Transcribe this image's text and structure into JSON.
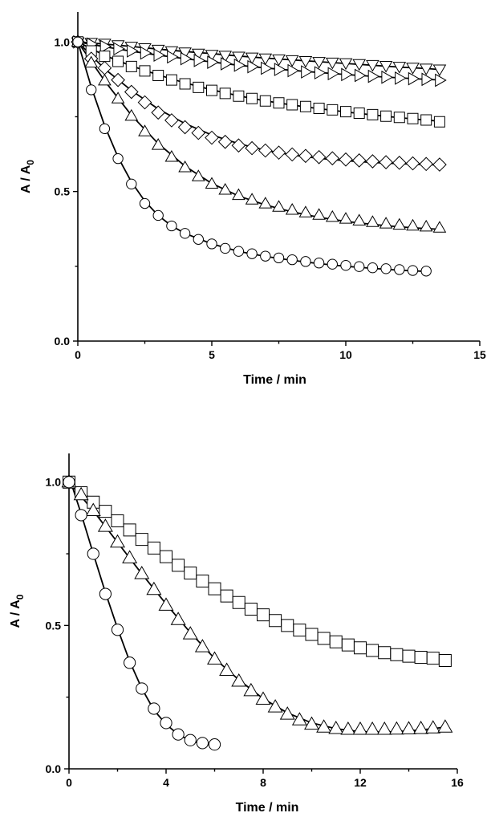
{
  "chart_data": [
    {
      "type": "scatter",
      "xlabel": "Time / min",
      "ylabel": "A / A",
      "ylabel_sub": "0",
      "xlim": [
        0,
        15
      ],
      "ylim": [
        0,
        1.1
      ],
      "xticks": [
        0,
        5,
        10,
        15
      ],
      "xtick_labels": [
        "0",
        "5",
        "10",
        "15"
      ],
      "yticks": [
        0.0,
        0.5,
        1.0
      ],
      "ytick_labels": [
        "0.0",
        "0.5",
        "1.0"
      ],
      "grid": false,
      "series": [
        {
          "marker": "down-triangle",
          "x": [
            0,
            0.5,
            1,
            1.5,
            2,
            2.5,
            3,
            3.5,
            4,
            4.5,
            5,
            5.5,
            6,
            6.5,
            7,
            7.5,
            8,
            8.5,
            9,
            9.5,
            10,
            10.5,
            11,
            11.5,
            12,
            12.5,
            13,
            13.5
          ],
          "y": [
            1.0,
            0.998,
            0.995,
            0.99,
            0.985,
            0.98,
            0.975,
            0.97,
            0.966,
            0.962,
            0.958,
            0.955,
            0.952,
            0.949,
            0.946,
            0.943,
            0.94,
            0.937,
            0.934,
            0.932,
            0.93,
            0.927,
            0.924,
            0.921,
            0.918,
            0.915,
            0.912,
            0.909
          ],
          "fit_x": [
            0,
            1,
            2,
            3,
            4,
            5,
            6,
            7,
            8,
            9,
            10,
            11,
            12,
            13,
            13.5
          ],
          "fit_y": [
            1.0,
            0.993,
            0.985,
            0.976,
            0.968,
            0.961,
            0.953,
            0.946,
            0.94,
            0.934,
            0.928,
            0.922,
            0.916,
            0.911,
            0.908
          ]
        },
        {
          "marker": "right-triangle",
          "x": [
            0,
            0.5,
            1,
            1.5,
            2,
            2.5,
            3,
            3.5,
            4,
            4.5,
            5,
            5.5,
            6,
            6.5,
            7,
            7.5,
            8,
            8.5,
            9,
            9.5,
            10,
            10.5,
            11,
            11.5,
            12,
            12.5,
            13,
            13.5
          ],
          "y": [
            1.0,
            0.993,
            0.985,
            0.977,
            0.97,
            0.963,
            0.956,
            0.95,
            0.944,
            0.938,
            0.932,
            0.927,
            0.922,
            0.917,
            0.912,
            0.908,
            0.904,
            0.9,
            0.897,
            0.894,
            0.891,
            0.888,
            0.885,
            0.882,
            0.879,
            0.877,
            0.875,
            0.872
          ],
          "fit_x": [
            0,
            1,
            2,
            3,
            4,
            5,
            6,
            7,
            8,
            9,
            10,
            11,
            12,
            13,
            13.5
          ],
          "fit_y": [
            1.0,
            0.984,
            0.969,
            0.956,
            0.944,
            0.933,
            0.922,
            0.913,
            0.905,
            0.898,
            0.891,
            0.885,
            0.88,
            0.875,
            0.873
          ]
        },
        {
          "marker": "square",
          "x": [
            0,
            0.5,
            1,
            1.5,
            2,
            2.5,
            3,
            3.5,
            4,
            4.5,
            5,
            5.5,
            6,
            6.5,
            7,
            7.5,
            8,
            8.5,
            9,
            9.5,
            10,
            10.5,
            11,
            11.5,
            12,
            12.5,
            13,
            13.5
          ],
          "y": [
            1.0,
            0.97,
            0.952,
            0.935,
            0.918,
            0.903,
            0.888,
            0.873,
            0.86,
            0.848,
            0.838,
            0.828,
            0.819,
            0.811,
            0.803,
            0.796,
            0.79,
            0.784,
            0.778,
            0.773,
            0.767,
            0.762,
            0.757,
            0.752,
            0.748,
            0.744,
            0.739,
            0.733
          ],
          "fit_x": [
            0,
            1,
            2,
            3,
            4,
            5,
            6,
            7,
            8,
            9,
            10,
            11,
            12,
            13,
            13.5
          ],
          "fit_y": [
            1.0,
            0.955,
            0.92,
            0.89,
            0.863,
            0.84,
            0.82,
            0.803,
            0.789,
            0.777,
            0.766,
            0.756,
            0.747,
            0.739,
            0.735
          ]
        },
        {
          "marker": "diamond",
          "x": [
            0,
            0.5,
            1,
            1.5,
            2,
            2.5,
            3,
            3.5,
            4,
            4.5,
            5,
            5.5,
            6,
            6.5,
            7,
            7.5,
            8,
            8.5,
            9,
            9.5,
            10,
            10.5,
            11,
            11.5,
            12,
            12.5,
            13,
            13.5
          ],
          "y": [
            1.0,
            0.944,
            0.913,
            0.873,
            0.833,
            0.798,
            0.764,
            0.738,
            0.715,
            0.696,
            0.68,
            0.666,
            0.654,
            0.645,
            0.637,
            0.63,
            0.624,
            0.619,
            0.615,
            0.611,
            0.607,
            0.604,
            0.601,
            0.598,
            0.596,
            0.594,
            0.592,
            0.59
          ],
          "fit_x": [
            0,
            1,
            2,
            3,
            4,
            5,
            6,
            7,
            8,
            9,
            10,
            11,
            12,
            13,
            13.5
          ],
          "fit_y": [
            1.0,
            0.91,
            0.838,
            0.776,
            0.727,
            0.689,
            0.66,
            0.638,
            0.622,
            0.611,
            0.603,
            0.597,
            0.593,
            0.59,
            0.589
          ]
        },
        {
          "marker": "triangle",
          "x": [
            0,
            0.5,
            1,
            1.5,
            2,
            2.5,
            3,
            3.5,
            4,
            4.5,
            5,
            5.5,
            6,
            6.5,
            7,
            7.5,
            8,
            8.5,
            9,
            9.5,
            10,
            10.5,
            11,
            11.5,
            12,
            12.5,
            13,
            13.5
          ],
          "y": [
            1.0,
            0.93,
            0.87,
            0.81,
            0.752,
            0.7,
            0.655,
            0.615,
            0.58,
            0.55,
            0.525,
            0.505,
            0.487,
            0.472,
            0.459,
            0.448,
            0.438,
            0.429,
            0.421,
            0.414,
            0.408,
            0.402,
            0.397,
            0.392,
            0.388,
            0.385,
            0.382,
            0.378
          ],
          "fit_x": [
            0,
            1,
            2,
            3,
            4,
            5,
            6,
            7,
            8,
            9,
            10,
            11,
            12,
            13,
            13.5
          ],
          "fit_y": [
            1.0,
            0.87,
            0.755,
            0.66,
            0.585,
            0.527,
            0.485,
            0.455,
            0.432,
            0.414,
            0.4,
            0.39,
            0.382,
            0.376,
            0.374
          ]
        },
        {
          "marker": "circle",
          "x": [
            0,
            0.5,
            1,
            1.5,
            2,
            2.5,
            3,
            3.5,
            4,
            4.5,
            5,
            5.5,
            6,
            6.5,
            7,
            7.5,
            8,
            8.5,
            9,
            9.5,
            10,
            10.5,
            11,
            11.5,
            12,
            12.5,
            13
          ],
          "y": [
            1.0,
            0.84,
            0.71,
            0.61,
            0.525,
            0.46,
            0.42,
            0.385,
            0.36,
            0.34,
            0.325,
            0.31,
            0.3,
            0.292,
            0.284,
            0.278,
            0.272,
            0.266,
            0.261,
            0.257,
            0.253,
            0.249,
            0.245,
            0.242,
            0.239,
            0.236,
            0.234
          ],
          "fit_x": [
            0,
            0.5,
            1,
            1.5,
            2,
            2.5,
            3,
            3.5,
            4,
            5,
            6,
            7,
            8,
            9,
            10,
            11,
            12,
            13
          ],
          "fit_y": [
            1.0,
            0.85,
            0.72,
            0.615,
            0.532,
            0.468,
            0.42,
            0.385,
            0.36,
            0.325,
            0.3,
            0.283,
            0.27,
            0.259,
            0.25,
            0.243,
            0.237,
            0.233
          ]
        }
      ]
    },
    {
      "type": "scatter",
      "xlabel": "Time / min",
      "ylabel": "A / A",
      "ylabel_sub": "0",
      "xlim": [
        0,
        16
      ],
      "ylim": [
        0,
        1.1
      ],
      "xticks": [
        0,
        4,
        8,
        12,
        16
      ],
      "xtick_labels": [
        "0",
        "4",
        "8",
        "12",
        "16"
      ],
      "yticks": [
        0.0,
        0.5,
        1.0
      ],
      "ytick_labels": [
        "0.0",
        "0.5",
        "1.0"
      ],
      "grid": false,
      "series": [
        {
          "marker": "square",
          "x": [
            0,
            0.5,
            1,
            1.5,
            2,
            2.5,
            3,
            3.5,
            4,
            4.5,
            5,
            5.5,
            6,
            6.5,
            7,
            7.5,
            8,
            8.5,
            9,
            9.5,
            10,
            10.5,
            11,
            11.5,
            12,
            12.5,
            13,
            13.5,
            14,
            14.5,
            15,
            15.5
          ],
          "y": [
            1.0,
            0.963,
            0.93,
            0.898,
            0.865,
            0.833,
            0.8,
            0.77,
            0.74,
            0.71,
            0.683,
            0.655,
            0.628,
            0.603,
            0.58,
            0.557,
            0.537,
            0.517,
            0.5,
            0.484,
            0.469,
            0.455,
            0.443,
            0.432,
            0.422,
            0.413,
            0.405,
            0.398,
            0.393,
            0.389,
            0.386,
            0.378
          ],
          "fit_x": [
            0,
            1,
            2,
            3,
            4,
            5,
            6,
            7,
            8,
            9,
            10,
            11,
            12,
            13,
            14,
            15,
            15.5
          ],
          "fit_y": [
            1.0,
            0.935,
            0.87,
            0.805,
            0.742,
            0.682,
            0.627,
            0.577,
            0.533,
            0.495,
            0.462,
            0.435,
            0.414,
            0.399,
            0.389,
            0.384,
            0.383
          ]
        },
        {
          "marker": "triangle",
          "x": [
            0,
            0.5,
            1,
            1.5,
            2,
            2.5,
            3,
            3.5,
            4,
            4.5,
            5,
            5.5,
            6,
            6.5,
            7,
            7.5,
            8,
            8.5,
            9,
            9.5,
            10,
            10.5,
            11,
            11.5,
            12,
            12.5,
            13,
            13.5,
            14,
            14.5,
            15,
            15.5
          ],
          "y": [
            1.0,
            0.955,
            0.9,
            0.845,
            0.79,
            0.735,
            0.68,
            0.625,
            0.57,
            0.52,
            0.47,
            0.425,
            0.382,
            0.343,
            0.305,
            0.272,
            0.242,
            0.215,
            0.19,
            0.17,
            0.155,
            0.145,
            0.14,
            0.137,
            0.137,
            0.137,
            0.137,
            0.138,
            0.139,
            0.14,
            0.142,
            0.145
          ],
          "fit_x": [
            0,
            1,
            2,
            3,
            4,
            5,
            6,
            7,
            8,
            9,
            10,
            11,
            12,
            13,
            14,
            15,
            15.5
          ],
          "fit_y": [
            1.0,
            0.9,
            0.79,
            0.68,
            0.575,
            0.475,
            0.385,
            0.31,
            0.245,
            0.195,
            0.16,
            0.14,
            0.13,
            0.128,
            0.132,
            0.14,
            0.146
          ]
        },
        {
          "marker": "circle",
          "x": [
            0,
            0.5,
            1,
            1.5,
            2,
            2.5,
            3,
            3.5,
            4,
            4.5,
            5,
            5.5,
            6
          ],
          "y": [
            1.0,
            0.885,
            0.75,
            0.61,
            0.485,
            0.37,
            0.28,
            0.21,
            0.16,
            0.12,
            0.1,
            0.09,
            0.085
          ],
          "fit_x": [
            0,
            0.5,
            1,
            1.5,
            2,
            2.5,
            3,
            3.5,
            4,
            4.5,
            5,
            5.5,
            6
          ],
          "fit_y": [
            1.02,
            0.89,
            0.75,
            0.615,
            0.49,
            0.375,
            0.28,
            0.205,
            0.155,
            0.12,
            0.098,
            0.087,
            0.082
          ]
        }
      ]
    }
  ]
}
